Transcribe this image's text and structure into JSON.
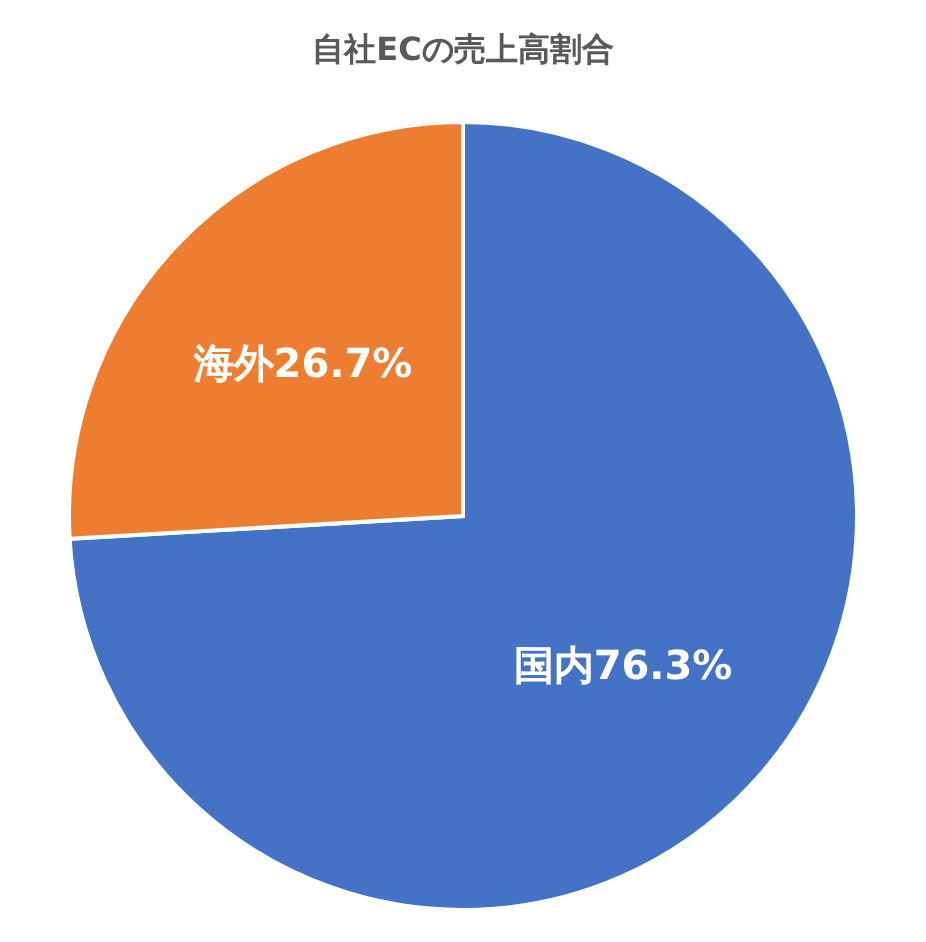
{
  "chart_data": {
    "type": "pie",
    "title": "自社ECの売上高割合",
    "categories": [
      "国内",
      "海外"
    ],
    "values": [
      76.3,
      26.7
    ],
    "value_labels": [
      "76.3%",
      "26.7%"
    ],
    "colors": [
      "#4472c4",
      "#ed7d31"
    ],
    "legend": false
  }
}
